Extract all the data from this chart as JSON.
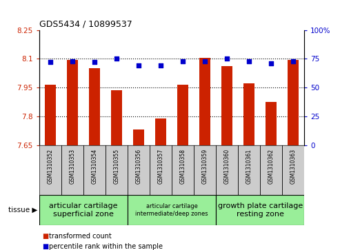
{
  "title": "GDS5434 / 10899537",
  "samples": [
    "GSM1310352",
    "GSM1310353",
    "GSM1310354",
    "GSM1310355",
    "GSM1310356",
    "GSM1310357",
    "GSM1310358",
    "GSM1310359",
    "GSM1310360",
    "GSM1310361",
    "GSM1310362",
    "GSM1310363"
  ],
  "bar_values": [
    7.965,
    8.095,
    8.05,
    7.935,
    7.73,
    7.79,
    7.965,
    8.105,
    8.06,
    7.97,
    7.875,
    8.095
  ],
  "dot_values": [
    72,
    73,
    72,
    75,
    69,
    69,
    73,
    73,
    75,
    73,
    71,
    73
  ],
  "bar_color": "#cc2200",
  "dot_color": "#0000cc",
  "ylim_left": [
    7.65,
    8.25
  ],
  "ylim_right": [
    0,
    100
  ],
  "yticks_left": [
    7.65,
    7.8,
    7.95,
    8.1,
    8.25
  ],
  "yticks_right": [
    0,
    25,
    50,
    75,
    100
  ],
  "ytick_labels_left": [
    "7.65",
    "7.8",
    "7.95",
    "8.1",
    "8.25"
  ],
  "ytick_labels_right": [
    "0",
    "25",
    "50",
    "75",
    "100%"
  ],
  "grid_lines": [
    7.8,
    7.95,
    8.1
  ],
  "tissue_groups": [
    {
      "label": "articular cartilage\nsuperficial zone",
      "start": 0,
      "end": 4,
      "fontsize": 8
    },
    {
      "label": "articular cartilage\nintermediate/deep zones",
      "start": 4,
      "end": 8,
      "fontsize": 6
    },
    {
      "label": "growth plate cartilage\nresting zone",
      "start": 8,
      "end": 12,
      "fontsize": 8
    }
  ],
  "tissue_bg_color": "#99ee99",
  "tick_area_color": "#cccccc",
  "legend_bar_label": "transformed count",
  "legend_dot_label": "percentile rank within the sample",
  "bar_width": 0.5,
  "background_color": "#ffffff"
}
